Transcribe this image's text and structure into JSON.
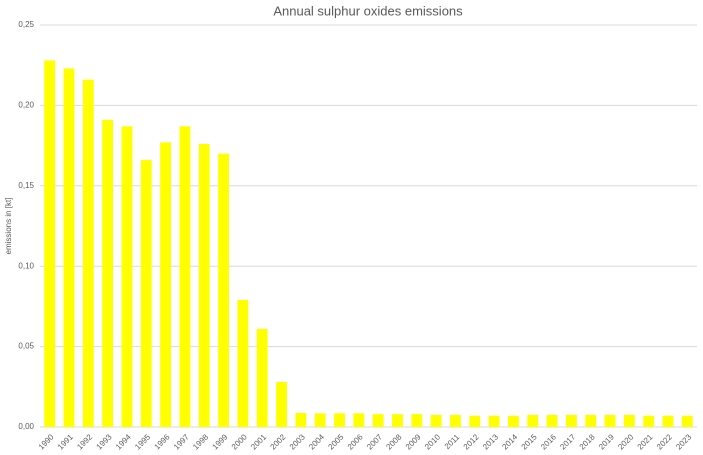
{
  "chart_data": {
    "type": "bar",
    "title": "Annual sulphur oxides emissions",
    "y_label": "emissions in [kt]",
    "categories": [
      "1990",
      "1991",
      "1992",
      "1993",
      "1994",
      "1995",
      "1996",
      "1997",
      "1998",
      "1999",
      "2000",
      "2001",
      "2002",
      "2003",
      "2004",
      "2005",
      "2006",
      "2007",
      "2008",
      "2009",
      "2010",
      "2011",
      "2012",
      "2013",
      "2014",
      "2015",
      "2016",
      "2017",
      "2018",
      "2019",
      "2020",
      "2021",
      "2022",
      "2023"
    ],
    "values": [
      0.228,
      0.223,
      0.216,
      0.191,
      0.187,
      0.166,
      0.177,
      0.187,
      0.176,
      0.17,
      0.079,
      0.061,
      0.028,
      0.0087,
      0.0085,
      0.0085,
      0.0085,
      0.008,
      0.008,
      0.008,
      0.0075,
      0.0075,
      0.007,
      0.007,
      0.007,
      0.0075,
      0.0075,
      0.0075,
      0.0075,
      0.0075,
      0.0075,
      0.007,
      0.007,
      0.007
    ],
    "color": "#ffff00",
    "ylim": [
      0,
      0.25
    ],
    "yticks": [
      {
        "value": 0,
        "label": "0,00"
      },
      {
        "value": 0.05,
        "label": "0,05"
      },
      {
        "value": 0.1,
        "label": "0,10"
      },
      {
        "value": 0.15,
        "label": "0,15"
      },
      {
        "value": 0.2,
        "label": "0,20"
      },
      {
        "value": 0.25,
        "label": "0,25"
      }
    ],
    "grid": true
  }
}
